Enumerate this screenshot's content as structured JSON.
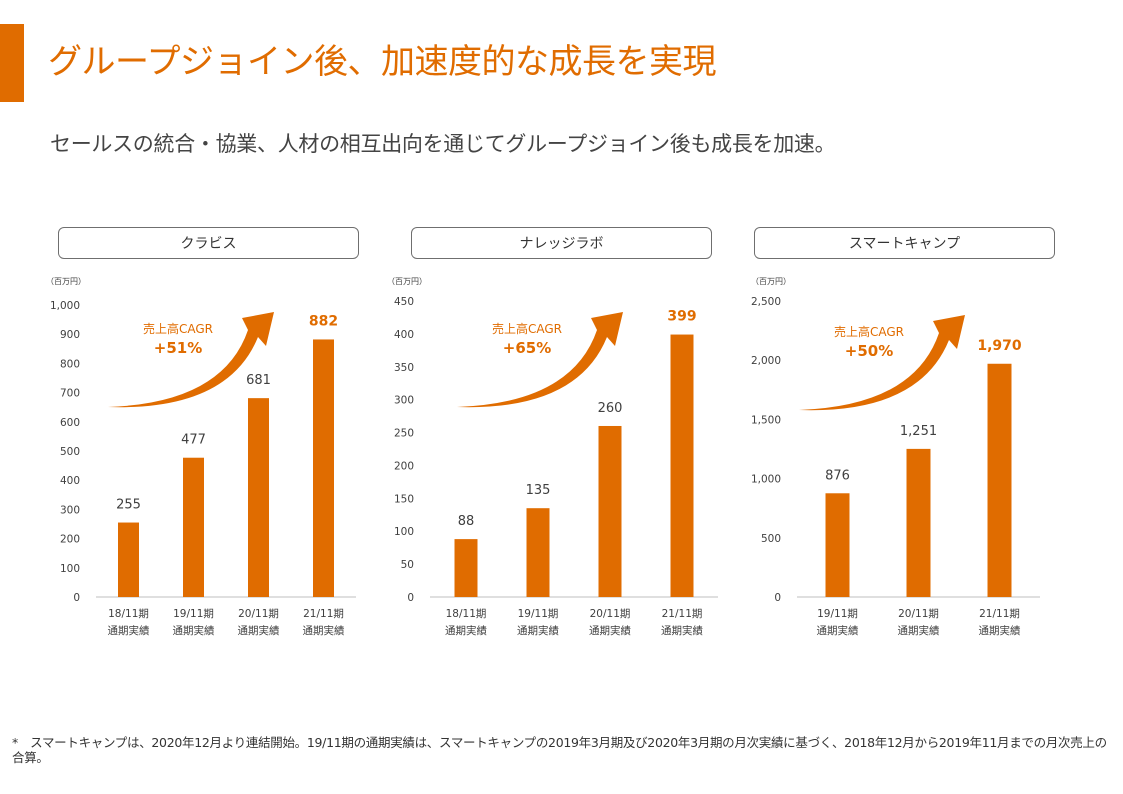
{
  "title": "グループジョイン後、加速度的な成長を実現",
  "subtitle": "セールスの統合・協業、人材の相互出向を通じてグループジョイン後も成長を加速。",
  "colors": {
    "accent": "#e06c00",
    "axis": "#bfbfbf",
    "text": "#404040"
  },
  "chart_data": [
    {
      "type": "bar",
      "title": "クラビス",
      "unit_label": "（百万円）",
      "categories": [
        [
          "18/11期",
          "通期実績"
        ],
        [
          "19/11期",
          "通期実績"
        ],
        [
          "20/11期",
          "通期実績"
        ],
        [
          "21/11期",
          "通期実績"
        ]
      ],
      "values": [
        255,
        477,
        681,
        882
      ],
      "value_labels": [
        "255",
        "477",
        "681",
        "882"
      ],
      "ylim": [
        0,
        1000
      ],
      "yticks": [
        0,
        100,
        200,
        300,
        400,
        500,
        600,
        700,
        800,
        900,
        1000
      ],
      "ytick_labels": [
        "0",
        "100",
        "200",
        "300",
        "400",
        "500",
        "600",
        "700",
        "800",
        "900",
        "1,000"
      ],
      "cagr_label": "売上高CAGR",
      "cagr_value": "+51%"
    },
    {
      "type": "bar",
      "title": "ナレッジラボ",
      "unit_label": "（百万円）",
      "categories": [
        [
          "18/11期",
          "通期実績"
        ],
        [
          "19/11期",
          "通期実績"
        ],
        [
          "20/11期",
          "通期実績"
        ],
        [
          "21/11期",
          "通期実績"
        ]
      ],
      "values": [
        88,
        135,
        260,
        399
      ],
      "value_labels": [
        "88",
        "135",
        "260",
        "399"
      ],
      "ylim": [
        0,
        450
      ],
      "yticks": [
        0,
        50,
        100,
        150,
        200,
        250,
        300,
        350,
        400,
        450
      ],
      "ytick_labels": [
        "0",
        "50",
        "100",
        "150",
        "200",
        "250",
        "300",
        "350",
        "400",
        "450"
      ],
      "cagr_label": "売上高CAGR",
      "cagr_value": "+65%"
    },
    {
      "type": "bar",
      "title": "スマートキャンプ",
      "unit_label": "（百万円）",
      "categories": [
        [
          "19/11期",
          "通期実績"
        ],
        [
          "20/11期",
          "通期実績"
        ],
        [
          "21/11期",
          "通期実績"
        ]
      ],
      "values": [
        876,
        1251,
        1970
      ],
      "value_labels": [
        "876",
        "1,251",
        "1,970"
      ],
      "ylim": [
        0,
        2500
      ],
      "yticks": [
        0,
        500,
        1000,
        1500,
        2000,
        2500
      ],
      "ytick_labels": [
        "0",
        "500",
        "1,000",
        "1,500",
        "2,000",
        "2,500"
      ],
      "cagr_label": "売上高CAGR",
      "cagr_value": "+50%"
    }
  ],
  "footnote": "*　スマートキャンプは、2020年12月より連結開始。19/11期の通期実績は、スマートキャンプの2019年3月期及び2020年3月期の月次実績に基づく、2018年12月から2019年11月までの月次売上の合算。"
}
